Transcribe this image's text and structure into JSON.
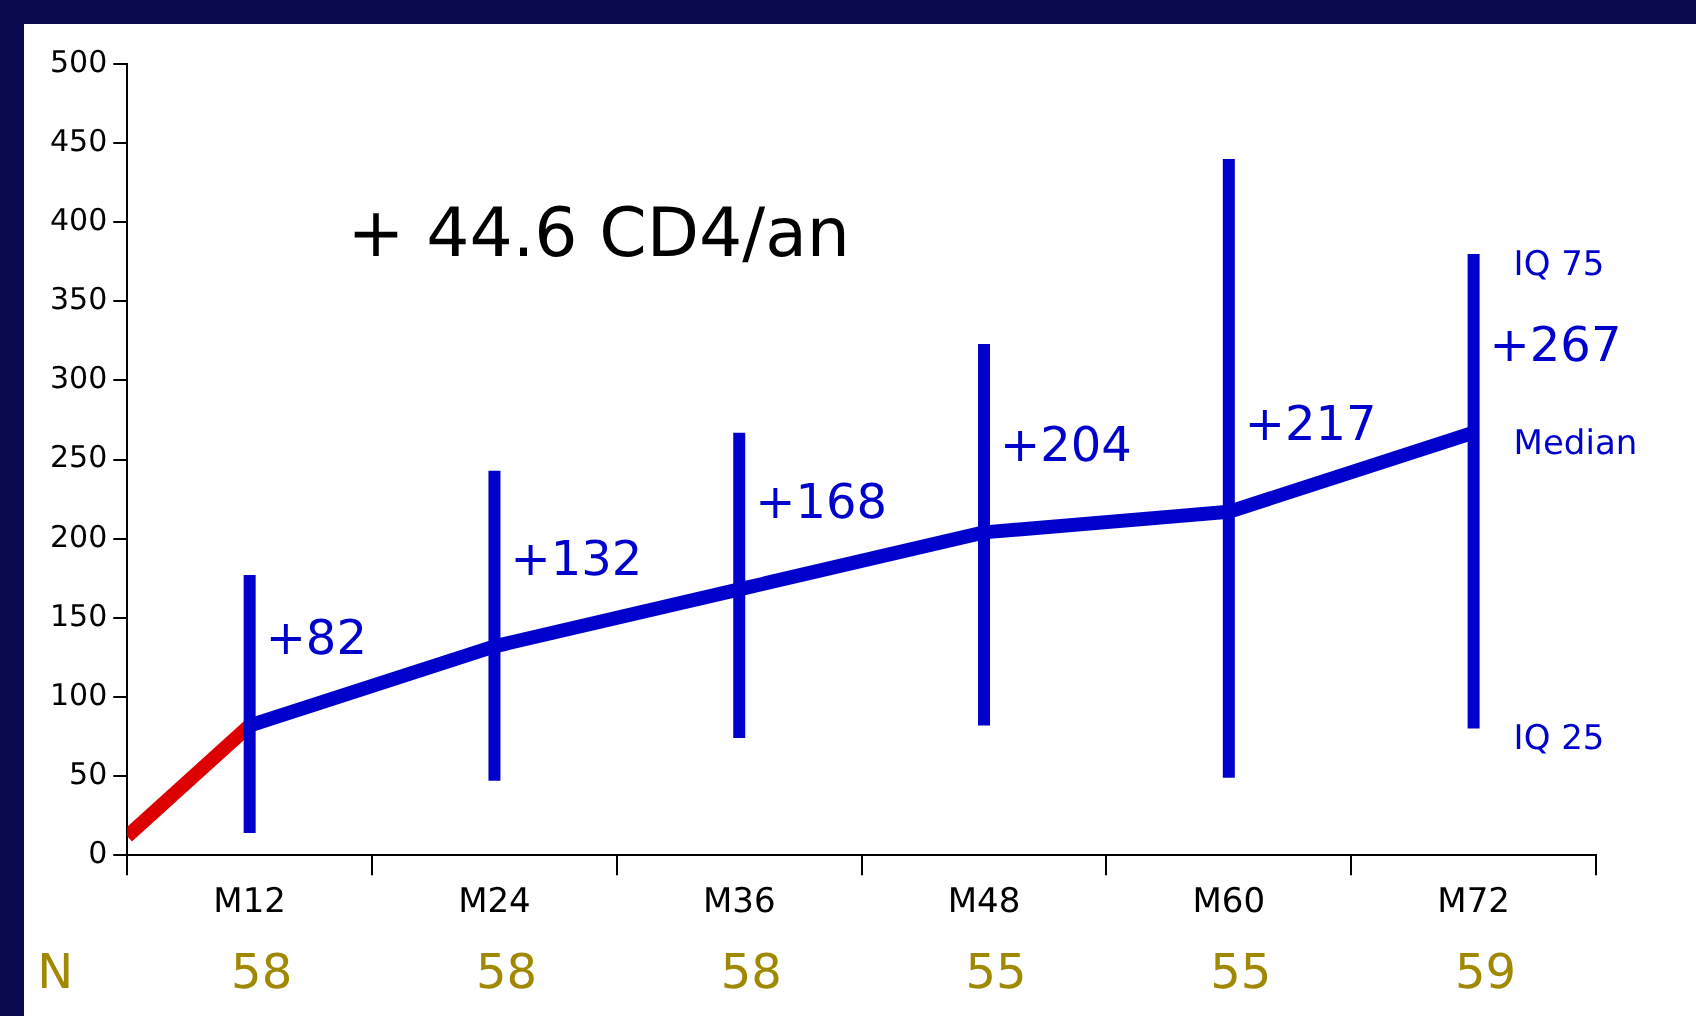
{
  "chart_data": {
    "type": "line",
    "title": "+ 44.6 CD4/an",
    "categories": [
      null,
      "M12",
      null,
      "M24",
      null,
      "M36",
      null,
      "M48",
      null,
      "M60",
      null,
      "M72",
      null
    ],
    "ylim": [
      0,
      500
    ],
    "yticks": [
      0,
      50,
      100,
      150,
      200,
      250,
      300,
      350,
      400,
      450,
      500
    ],
    "series": [
      {
        "color": "#dd0000",
        "values": [
          12,
          82,
          null,
          null,
          null,
          null,
          null,
          null,
          null,
          null,
          null,
          null,
          null
        ]
      },
      {
        "color": "#0000cc",
        "x": [
          "M12",
          "M24",
          "M36",
          "M48",
          "M60",
          "M72"
        ],
        "values": [
          82,
          132,
          168,
          204,
          217,
          267
        ],
        "errors": [
          [
            14,
            177
          ],
          [
            47,
            243
          ],
          [
            74,
            267
          ],
          [
            82,
            323
          ],
          [
            49,
            440
          ],
          [
            80,
            380
          ]
        ],
        "value_labels": [
          "+82",
          "+132",
          "+168",
          "+204",
          "+217",
          "+267"
        ]
      }
    ],
    "annotations": [
      {
        "text": "IQ 75",
        "x": "M72",
        "y": 380
      },
      {
        "text": "Median",
        "x": "M72",
        "y": 267
      },
      {
        "text": "IQ 25",
        "x": "M72",
        "y": 80
      },
      "N",
      "58",
      "58",
      "58",
      "55",
      "55",
      "59"
    ],
    "grid": false,
    "legend": false,
    "marker": "none",
    "line_style": "solid"
  }
}
